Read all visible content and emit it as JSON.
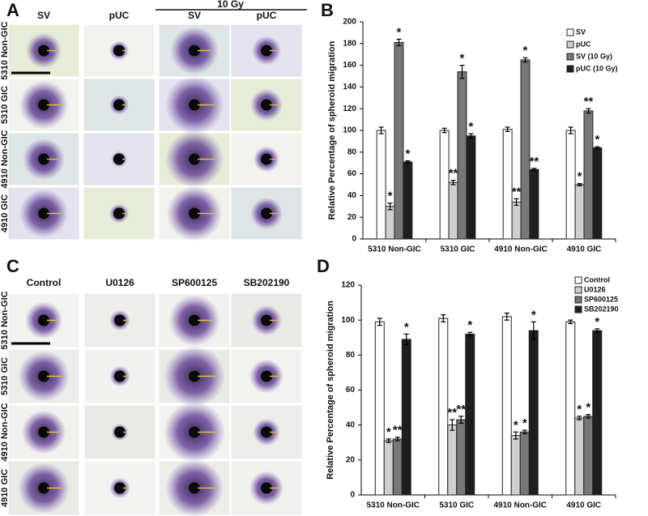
{
  "panels": [
    {
      "letter": "A",
      "column_headers": [
        "SV",
        "pUC",
        "SV",
        "pUC"
      ],
      "group_header": "10 Gy",
      "row_labels": [
        "5310 Non-GIC",
        "5310 GIC",
        "4910 Non-GIC",
        "4910 GIC"
      ]
    },
    {
      "letter": "C",
      "column_headers": [
        "Control",
        "U0126",
        "SP600125",
        "SB202190"
      ],
      "row_labels": [
        "5310 Non-GIC",
        "5310 GIC",
        "4910 Non-GIC",
        "4910 GIC"
      ]
    }
  ],
  "chart_data": [
    {
      "type": "bar",
      "label": "B",
      "y_label": "Relative Percentage of spheroid migration",
      "categories": [
        "5310 Non-GIC",
        "5310 GIC",
        "4910 Non-GIC",
        "4910 GIC"
      ],
      "ylim": [
        0,
        200
      ],
      "yticks": [
        0,
        20,
        40,
        60,
        80,
        100,
        120,
        140,
        160,
        180,
        200
      ],
      "legend": "upper right",
      "series": [
        {
          "name": "SV",
          "color": "#ffffff",
          "values": [
            100,
            100,
            101,
            100
          ],
          "errors": [
            3,
            2,
            2,
            3
          ],
          "annotations": [
            null,
            null,
            null,
            null
          ]
        },
        {
          "name": "pUC",
          "color": "#cfcfcf",
          "values": [
            30,
            52,
            34,
            50
          ],
          "errors": [
            3,
            2,
            3,
            1
          ],
          "annotations": [
            "*",
            "**",
            "**",
            "*"
          ]
        },
        {
          "name": "SV (10 Gy)",
          "color": "#777777",
          "values": [
            181,
            154,
            165,
            118
          ],
          "errors": [
            3,
            6,
            2,
            2
          ],
          "annotations": [
            "*",
            "*",
            "*",
            "**"
          ]
        },
        {
          "name": "pUC (10 Gy)",
          "color": "#1e1e1e",
          "values": [
            71,
            95,
            64,
            84
          ],
          "errors": [
            1,
            2,
            1,
            1
          ],
          "annotations": [
            "*",
            "*",
            "**",
            "*"
          ]
        }
      ]
    },
    {
      "type": "bar",
      "label": "D",
      "y_label": "Relative Percentage of spheroid migration",
      "categories": [
        "5310 Non-GIC",
        "5310 GIC",
        "4910 Non-GIC",
        "4910 GIC"
      ],
      "ylim": [
        0,
        120
      ],
      "yticks": [
        0,
        20,
        40,
        60,
        80,
        100,
        120
      ],
      "legend": "upper right",
      "series": [
        {
          "name": "Control",
          "color": "#ffffff",
          "values": [
            99,
            101,
            102,
            99
          ],
          "errors": [
            2,
            2,
            2,
            1
          ],
          "annotations": [
            null,
            null,
            null,
            null
          ]
        },
        {
          "name": "U0126",
          "color": "#cfcfcf",
          "values": [
            31,
            40,
            34,
            44
          ],
          "errors": [
            1,
            3,
            2,
            1
          ],
          "annotations": [
            "*",
            "**",
            "*",
            "*"
          ]
        },
        {
          "name": "SP600125",
          "color": "#777777",
          "values": [
            32,
            43,
            36,
            45
          ],
          "errors": [
            1,
            2,
            1,
            1
          ],
          "annotations": [
            "**",
            "**",
            "*",
            "*"
          ]
        },
        {
          "name": "SB202190",
          "color": "#1e1e1e",
          "values": [
            89,
            92,
            94,
            94
          ],
          "errors": [
            3,
            1,
            5,
            1
          ],
          "annotations": [
            "*",
            "*",
            "*",
            "*"
          ]
        }
      ]
    }
  ]
}
